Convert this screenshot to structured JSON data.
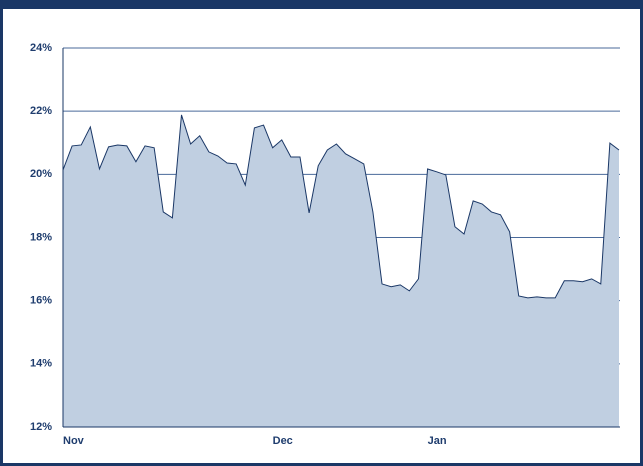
{
  "chart_data": {
    "type": "area",
    "categories": [
      "Nov",
      null,
      null,
      null,
      null,
      null,
      null,
      null,
      null,
      null,
      null,
      null,
      null,
      null,
      null,
      null,
      null,
      null,
      null,
      null,
      null,
      null,
      null,
      "Dec",
      null,
      null,
      null,
      null,
      null,
      null,
      null,
      null,
      null,
      null,
      null,
      null,
      null,
      null,
      null,
      null,
      "Jan",
      null,
      null,
      null,
      null,
      null,
      null,
      null,
      null,
      null,
      null,
      null,
      null,
      null,
      null,
      null,
      null,
      null,
      null,
      null,
      null,
      null
    ],
    "values": [
      20.14,
      20.9,
      20.93,
      21.5,
      20.17,
      20.87,
      20.93,
      20.9,
      20.4,
      20.9,
      20.84,
      18.81,
      18.62,
      21.88,
      20.96,
      21.22,
      20.71,
      20.58,
      20.36,
      20.33,
      19.66,
      21.47,
      21.56,
      20.84,
      21.09,
      20.55,
      20.55,
      18.78,
      20.27,
      20.77,
      20.96,
      20.65,
      20.49,
      20.33,
      18.81,
      16.53,
      16.44,
      16.5,
      16.31,
      16.69,
      20.17,
      20.08,
      19.98,
      18.34,
      18.11,
      19.16,
      19.06,
      18.81,
      18.72,
      18.18,
      16.15,
      16.09,
      16.12,
      16.09,
      16.09,
      16.63,
      16.63,
      16.6,
      16.69,
      16.53,
      20.99,
      20.77
    ],
    "color": "#c0cfe1",
    "ylim": [
      12,
      24
    ],
    "yticks": [
      {
        "value": 12,
        "label": "12%"
      },
      {
        "value": 14,
        "label": "14%"
      },
      {
        "value": 16,
        "label": "16%"
      },
      {
        "value": 18,
        "label": "18%"
      },
      {
        "value": 20,
        "label": "20%"
      },
      {
        "value": 22,
        "label": "22%"
      },
      {
        "value": 24,
        "label": "24%"
      }
    ],
    "grid": true
  }
}
